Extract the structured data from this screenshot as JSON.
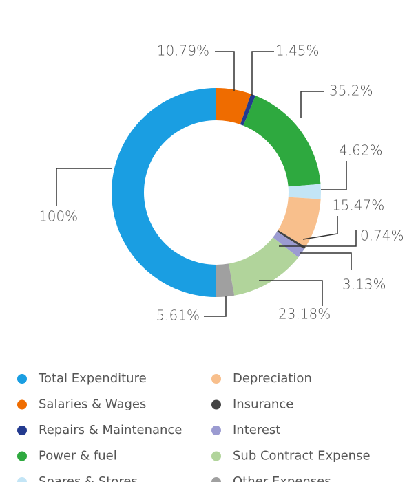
{
  "chart_data": {
    "type": "donut",
    "categories": [
      "Total Expenditure",
      "Salaries & Wages",
      "Repairs & Maintenance",
      "Power & fuel",
      "Spares & Stores",
      "Depreciation",
      "Insurance",
      "Interest",
      "Sub Contract Expense",
      "Other Expenses"
    ],
    "values": [
      100,
      10.79,
      1.45,
      35.2,
      4.62,
      15.47,
      0.74,
      3.13,
      23.18,
      5.61
    ],
    "value_labels": [
      "100%",
      "10.79%",
      "1.45%",
      "35.2%",
      "4.62%",
      "15.47%",
      "0.74%",
      "3.13%",
      "23.18%",
      "5.61%"
    ],
    "colors": [
      "#1a9ee2",
      "#ef6c00",
      "#233a8f",
      "#2ea93f",
      "#c3e5f6",
      "#f8bf8c",
      "#444444",
      "#9b9bd1",
      "#b1d49b",
      "#a0a0a0"
    ]
  }
}
